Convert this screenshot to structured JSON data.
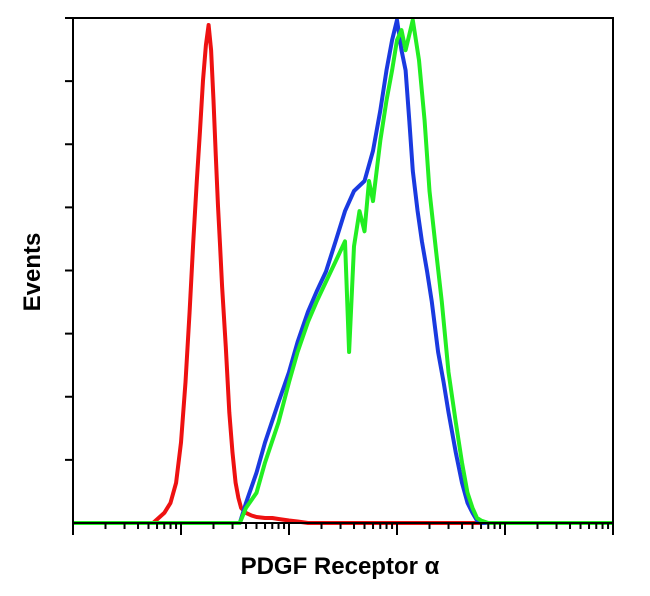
{
  "chart_data": {
    "type": "line",
    "title": "",
    "xlabel": "PDGF Receptor α",
    "ylabel": "Events",
    "x_scale": "log",
    "xlim": [
      0.1,
      10000
    ],
    "ylim": [
      0,
      100
    ],
    "grid": false,
    "legend": "none",
    "series": [
      {
        "color": "#ee1111",
        "x": [
          0.55,
          0.62,
          0.7,
          0.8,
          0.9,
          1.0,
          1.1,
          1.2,
          1.3,
          1.4,
          1.5,
          1.6,
          1.7,
          1.8,
          1.9,
          2.0,
          2.1,
          2.2,
          2.3,
          2.4,
          2.6,
          2.8,
          3.0,
          3.2,
          3.4,
          3.6,
          3.8,
          4.0,
          4.5,
          5,
          6,
          7,
          8,
          10,
          12,
          15,
          20,
          50,
          100,
          300,
          800
        ],
        "y": [
          0,
          1,
          2,
          4,
          8,
          16,
          28,
          42,
          56,
          68,
          78,
          88,
          95,
          99,
          94,
          84,
          73,
          63,
          55,
          47,
          35,
          22,
          14,
          8,
          5,
          3,
          2.5,
          2,
          1.5,
          1.2,
          1,
          1,
          0.8,
          0.5,
          0.3,
          0,
          0,
          0,
          0,
          0,
          0
        ]
      },
      {
        "color": "#1a3ae0",
        "x": [
          3.5,
          4,
          5,
          6,
          8,
          10,
          12,
          15,
          18,
          22,
          27,
          33,
          40,
          50,
          60,
          70,
          80,
          90,
          100,
          110,
          120,
          130,
          140,
          155,
          170,
          190,
          210,
          240,
          270,
          300,
          350,
          400,
          450,
          500,
          550,
          600
        ],
        "y": [
          0,
          4,
          10,
          16,
          24,
          30,
          36,
          42,
          46,
          50,
          56,
          62,
          66,
          68,
          74,
          82,
          90,
          96,
          100,
          94,
          90,
          80,
          70,
          62,
          56,
          50,
          44,
          34,
          28,
          22,
          14,
          8,
          4,
          2,
          0.5,
          0
        ]
      },
      {
        "color": "#22ee22",
        "x": [
          3.5,
          4,
          5,
          6,
          8,
          10,
          12,
          15,
          18,
          22,
          27,
          33,
          36,
          40,
          45,
          50,
          55,
          60,
          70,
          80,
          90,
          100,
          110,
          120,
          140,
          160,
          180,
          200,
          230,
          260,
          300,
          350,
          400,
          450,
          500,
          550,
          600,
          700
        ],
        "y": [
          0,
          3,
          6,
          12,
          20,
          28,
          34,
          40,
          44,
          48,
          52,
          56,
          34,
          55,
          62,
          58,
          68,
          64,
          76,
          84,
          90,
          96,
          98,
          94,
          100,
          92,
          80,
          66,
          54,
          44,
          30,
          20,
          12,
          6,
          3,
          1,
          0.5,
          0
        ]
      }
    ]
  }
}
